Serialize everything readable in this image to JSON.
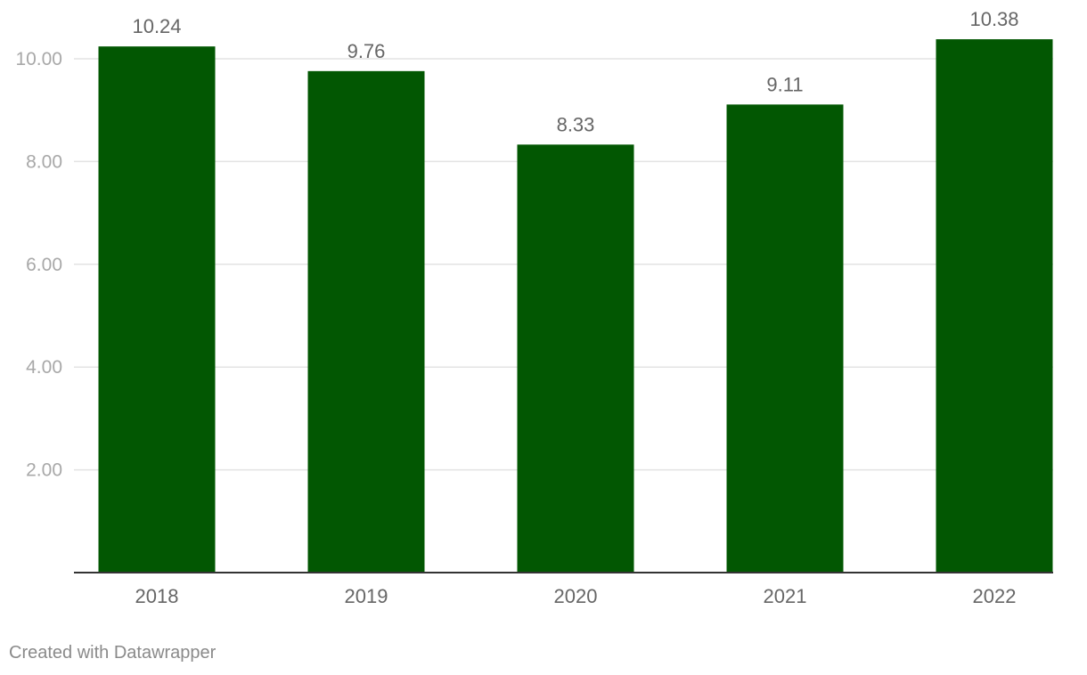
{
  "chart_data": {
    "type": "bar",
    "categories": [
      "2018",
      "2019",
      "2020",
      "2021",
      "2022"
    ],
    "values": [
      10.24,
      9.76,
      8.33,
      9.11,
      10.38
    ],
    "value_labels": [
      "10.24",
      "9.76",
      "8.33",
      "9.11",
      "10.38"
    ],
    "y_ticks": [
      2,
      4,
      6,
      8,
      10
    ],
    "y_tick_labels": [
      "2.00",
      "4.00",
      "6.00",
      "8.00",
      "10.00"
    ],
    "ylim": [
      0,
      10.5
    ],
    "grid": true,
    "bar_color": "#025702",
    "grid_color": "#e3e3e3",
    "axis_color": "#333333",
    "label_color": "#666666",
    "tick_label_color": "#a8a8a8"
  },
  "footer": {
    "credit": "Created with Datawrapper"
  }
}
